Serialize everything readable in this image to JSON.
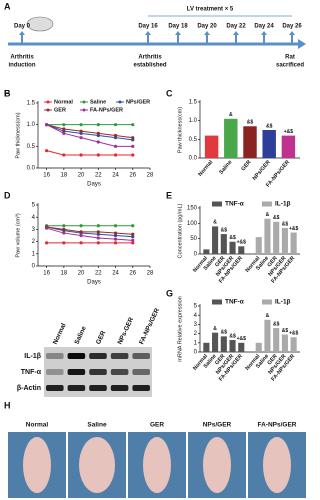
{
  "timeline": {
    "panel": "A",
    "header": "LV treatment × 5",
    "days": [
      "Day 0",
      "Day 16",
      "Day 18",
      "Day 20",
      "Day 22",
      "Day 24",
      "Day 26"
    ],
    "notes": [
      [
        "Arthritis",
        "induction"
      ],
      [
        "Arthritis",
        "established"
      ],
      [
        "Rat",
        "sacrificed"
      ]
    ]
  },
  "chart_data": [
    {
      "type": "line",
      "panel": "B",
      "xlabel": "Days",
      "ylabel": "Paw thickness(cm)",
      "x": [
        16,
        18,
        20,
        22,
        24,
        26
      ],
      "xlim": [
        15,
        28
      ],
      "xticks": [
        16,
        18,
        20,
        22,
        24,
        26,
        28
      ],
      "ylim": [
        0,
        1.5
      ],
      "yticks": [
        {
          "value": 0,
          "label": "0.0"
        },
        {
          "value": 0.5,
          "label": "0.5"
        },
        {
          "value": 1,
          "label": "1.0"
        },
        {
          "value": 1.5,
          "label": "1.5"
        }
      ],
      "legend": "top",
      "series": [
        {
          "name": "Normal",
          "color": "#e8262f",
          "values": [
            0.4,
            0.3,
            0.3,
            0.3,
            0.3,
            0.3
          ]
        },
        {
          "name": "Saline",
          "color": "#2e9b3a",
          "values": [
            1.0,
            1.0,
            1.0,
            1.0,
            1.0,
            1.0
          ]
        },
        {
          "name": "NPs/GER",
          "color": "#2b4fa0",
          "values": [
            1.0,
            0.85,
            0.8,
            0.75,
            0.7,
            0.65
          ]
        },
        {
          "name": "GER",
          "color": "#9b2a2a",
          "values": [
            1.0,
            0.9,
            0.85,
            0.8,
            0.75,
            0.7
          ]
        },
        {
          "name": "FA-NPs/GER",
          "color": "#a0309a",
          "values": [
            1.0,
            0.8,
            0.7,
            0.6,
            0.5,
            0.5
          ]
        }
      ]
    },
    {
      "type": "bar",
      "panel": "C",
      "ylabel": "Paw thickness(cm)",
      "categories": [
        "Normal",
        "Saline",
        "GER",
        "NPs/GER",
        "FA-NPs/GER"
      ],
      "values": [
        0.6,
        1.05,
        0.85,
        0.75,
        0.6
      ],
      "colors": [
        "#e0393e",
        "#4aa84a",
        "#8b2323",
        "#2b3f9b",
        "#c0308f"
      ],
      "annotations": [
        null,
        "&",
        "&$",
        "&$",
        "+&$"
      ],
      "ylim": [
        0,
        1.5
      ],
      "yticks": [
        {
          "value": 0,
          "label": "0.0"
        },
        {
          "value": 0.5,
          "label": "0.5"
        },
        {
          "value": 1,
          "label": "1.0"
        },
        {
          "value": 1.5,
          "label": "1.5"
        }
      ]
    },
    {
      "type": "line",
      "panel": "D",
      "xlabel": "Days",
      "ylabel": "Paw volume (cm³)",
      "x": [
        16,
        18,
        20,
        22,
        24,
        26
      ],
      "xlim": [
        15,
        28
      ],
      "xticks": [
        16,
        18,
        20,
        22,
        24,
        26,
        28
      ],
      "ylim": [
        0,
        5
      ],
      "yticks": [
        0,
        1,
        2,
        3,
        4,
        5
      ],
      "series": [
        {
          "name": "Normal",
          "color": "#e8262f",
          "values": [
            1.9,
            1.9,
            1.9,
            1.9,
            1.9,
            1.9
          ]
        },
        {
          "name": "Saline",
          "color": "#2e9b3a",
          "values": [
            3.3,
            3.3,
            3.3,
            3.3,
            3.3,
            3.3
          ]
        },
        {
          "name": "NPs/GER",
          "color": "#2b4fa0",
          "values": [
            3.2,
            2.9,
            2.7,
            2.6,
            2.5,
            2.4
          ]
        },
        {
          "name": "GER",
          "color": "#9b2a2a",
          "values": [
            3.2,
            3.0,
            2.8,
            2.8,
            2.7,
            2.6
          ]
        },
        {
          "name": "FA-NPs/GER",
          "color": "#a0309a",
          "values": [
            3.1,
            2.7,
            2.5,
            2.3,
            2.2,
            2.1
          ]
        }
      ]
    },
    {
      "type": "bar",
      "panel": "E",
      "ylabel": "Concentration (pg/mL)",
      "legend": "top",
      "categories": [
        "Normal",
        "Saline",
        "GER",
        "NPs/GER",
        "FA-NPs/GER"
      ],
      "ylim": [
        0,
        150
      ],
      "yticks": [
        0,
        50,
        100,
        150
      ],
      "series": [
        {
          "name": "TNF-α",
          "color": "#555555",
          "values": [
            15,
            90,
            65,
            40,
            25
          ],
          "annotations": [
            null,
            "&",
            "&$",
            "&$",
            "+&$"
          ]
        },
        {
          "name": "IL-1β",
          "color": "#aaaaaa",
          "values": [
            55,
            115,
            105,
            85,
            70
          ],
          "annotations": [
            null,
            "&",
            "&$",
            "&$",
            "+&$"
          ]
        }
      ]
    },
    {
      "type": "bar",
      "panel": "G",
      "ylabel": "mRNA Relative expression",
      "legend": "top",
      "categories": [
        "Normal",
        "Saline",
        "GER",
        "NPs/GER",
        "FA-NPs/GER"
      ],
      "ylim": [
        0,
        5
      ],
      "yticks": [
        0,
        1,
        2,
        3,
        4,
        5
      ],
      "series": [
        {
          "name": "TNF-α",
          "color": "#555555",
          "values": [
            1,
            2.1,
            1.7,
            1.3,
            1.0
          ],
          "annotations": [
            null,
            "&",
            "&$",
            "&$",
            "+&$"
          ]
        },
        {
          "name": "IL-1β",
          "color": "#aaaaaa",
          "values": [
            1,
            3.5,
            2.6,
            1.9,
            1.6
          ],
          "annotations": [
            null,
            "&",
            "&$",
            "&$",
            "+&$"
          ]
        }
      ]
    }
  ],
  "blot": {
    "panel": "F",
    "lanes": [
      "Normal",
      "Saline",
      "GER",
      "NPs-GER",
      "FA-NPs/GER"
    ],
    "rows": [
      "IL-1β",
      "TNF-α",
      "β-Actin"
    ]
  },
  "photos": {
    "panel": "H",
    "labels": [
      "Normal",
      "Saline",
      "GER",
      "NPs/GER",
      "FA-NPs/GER"
    ]
  }
}
